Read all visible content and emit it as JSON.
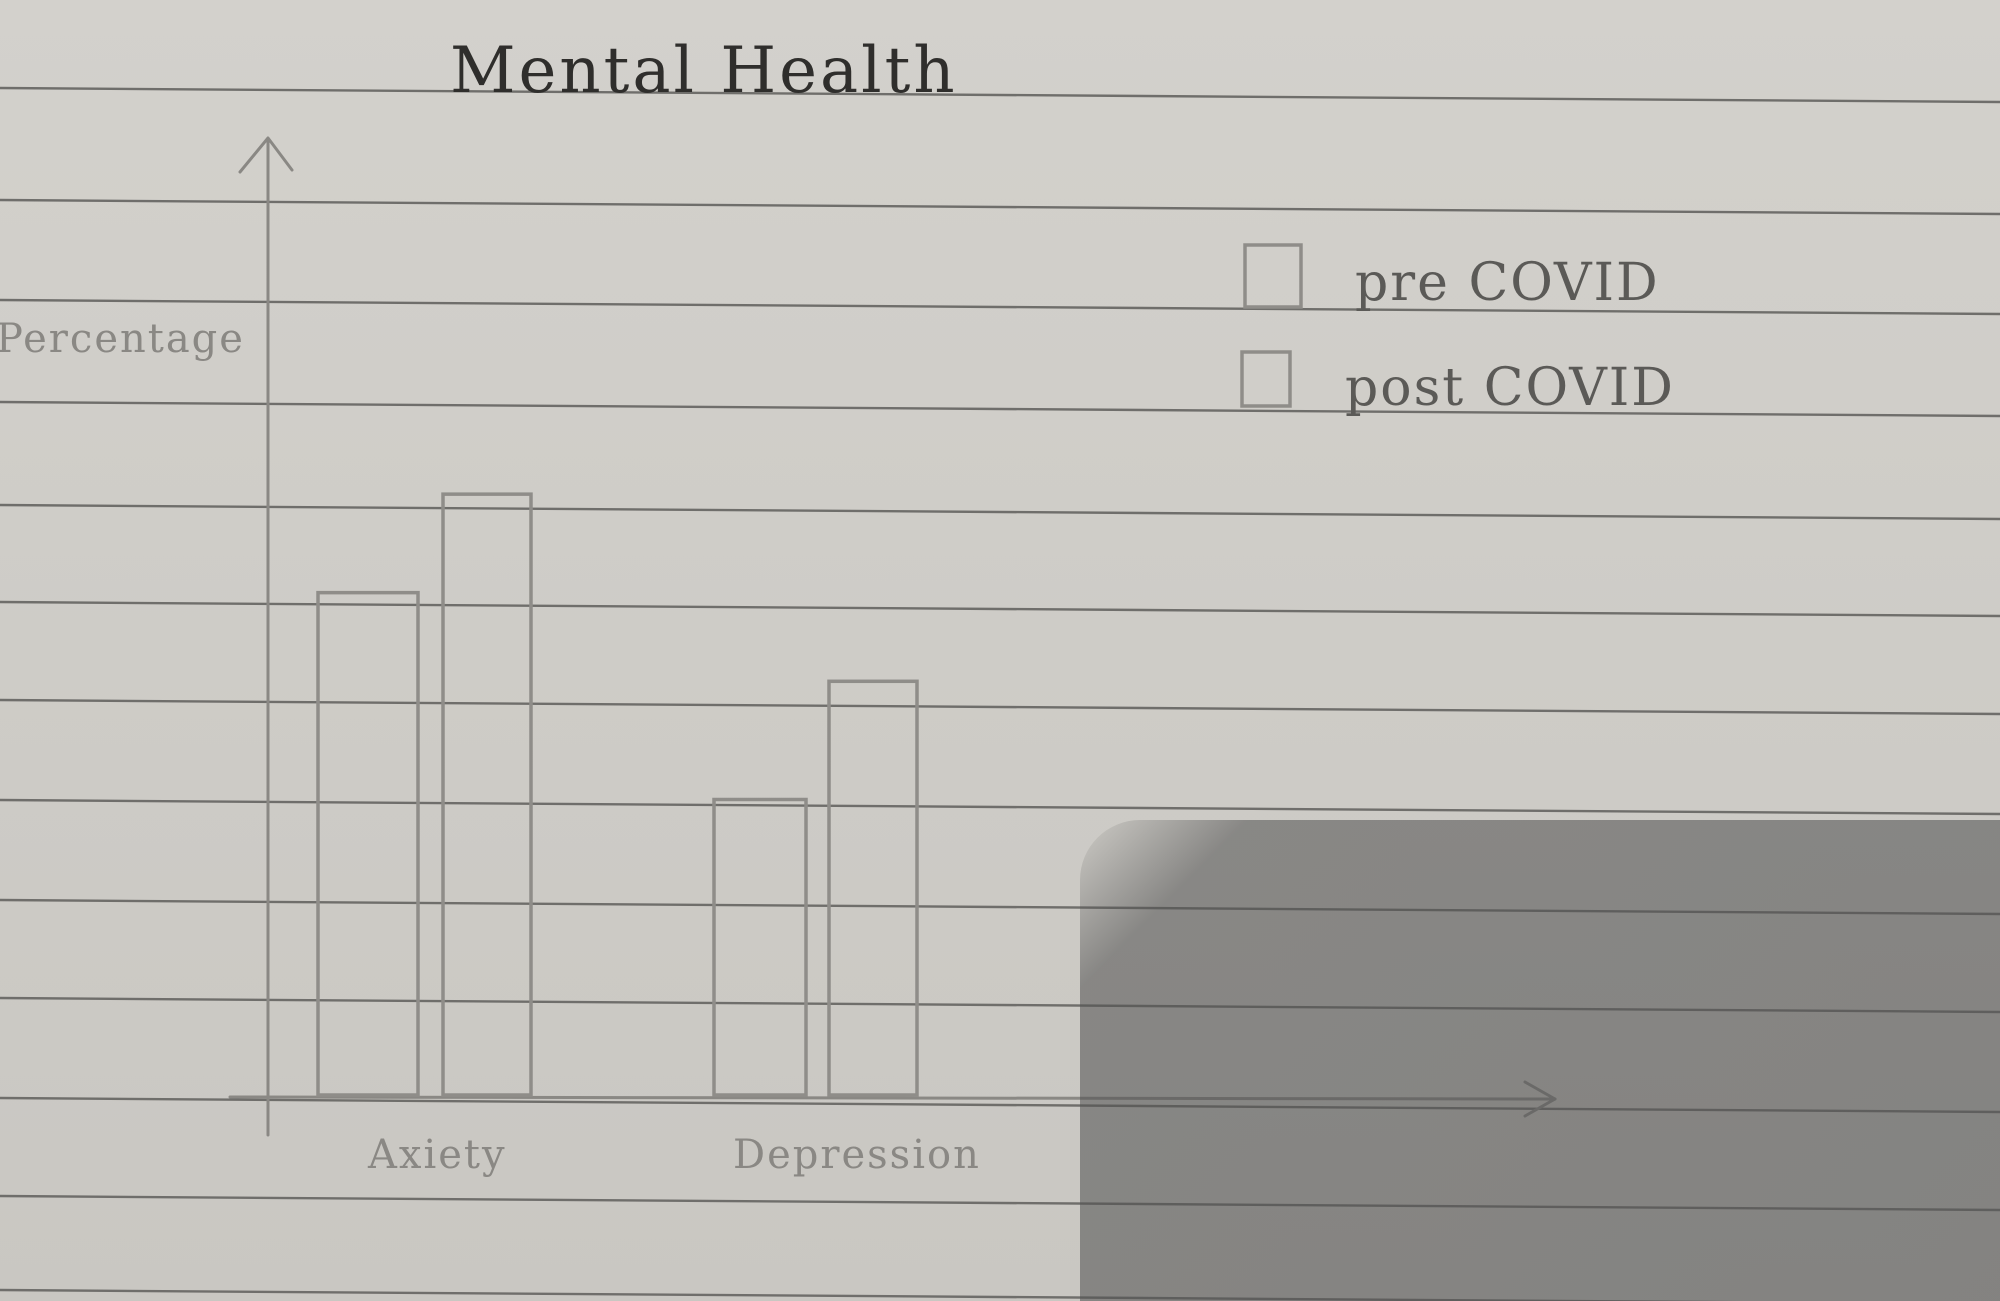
{
  "chart_data": {
    "type": "bar",
    "title": "Mental Health",
    "ylabel": "Percentage",
    "xlabel": "",
    "categories": [
      "Axiety",
      "Depression"
    ],
    "series": [
      {
        "name": "pre COVID",
        "pattern": "none",
        "values": [
          51,
          30
        ]
      },
      {
        "name": "post COVID",
        "pattern": "hatched",
        "values": [
          61,
          42
        ]
      }
    ],
    "ylim": [
      0,
      100
    ],
    "legend_position": "top-right"
  }
}
